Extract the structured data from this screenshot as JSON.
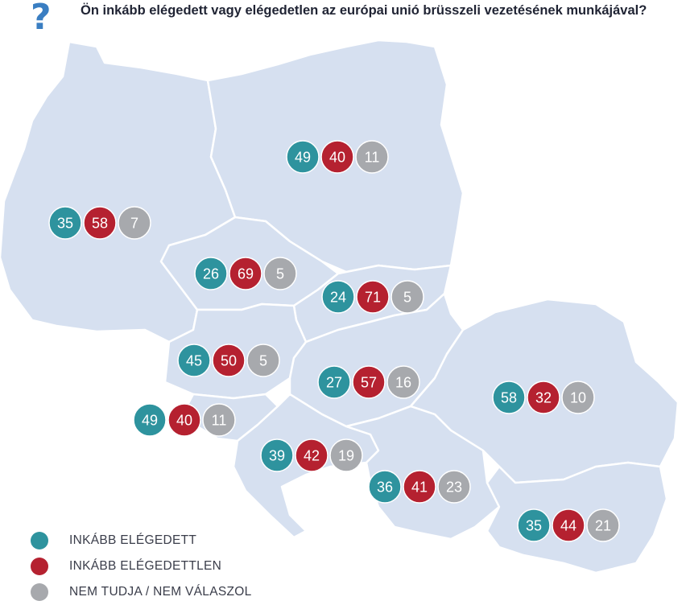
{
  "header": {
    "icon": "question-mark-icon",
    "title": "Ön inkább elégedett vagy elégedetlen az európai unió brüsszeli vezetésének munkájával?"
  },
  "colors": {
    "satisfied": "#2e939e",
    "dissatisfied": "#b52130",
    "unknown": "#a7a9ad",
    "land": "#d6e0f0",
    "border": "#ffffff"
  },
  "regions": [
    {
      "id": "poland",
      "values": [
        49,
        40,
        11
      ]
    },
    {
      "id": "germany",
      "values": [
        35,
        58,
        7
      ]
    },
    {
      "id": "czechia",
      "values": [
        26,
        69,
        5
      ]
    },
    {
      "id": "slovakia",
      "values": [
        24,
        71,
        5
      ]
    },
    {
      "id": "austria",
      "values": [
        45,
        50,
        5
      ]
    },
    {
      "id": "hungary",
      "values": [
        27,
        57,
        16
      ]
    },
    {
      "id": "romania",
      "values": [
        58,
        32,
        10
      ]
    },
    {
      "id": "slovenia",
      "values": [
        49,
        40,
        11
      ]
    },
    {
      "id": "croatia",
      "values": [
        39,
        42,
        19
      ]
    },
    {
      "id": "serbia",
      "values": [
        36,
        41,
        23
      ]
    },
    {
      "id": "bulgaria",
      "values": [
        35,
        44,
        21
      ]
    }
  ],
  "legend": [
    {
      "label": "INKÁBB ELÉGEDETT",
      "color": "#2e939e"
    },
    {
      "label": "INKÁBB ELÉGEDETTLEN",
      "color": "#b52130"
    },
    {
      "label": "NEM TUDJA / NEM VÁLASZOL",
      "color": "#a7a9ad"
    }
  ]
}
